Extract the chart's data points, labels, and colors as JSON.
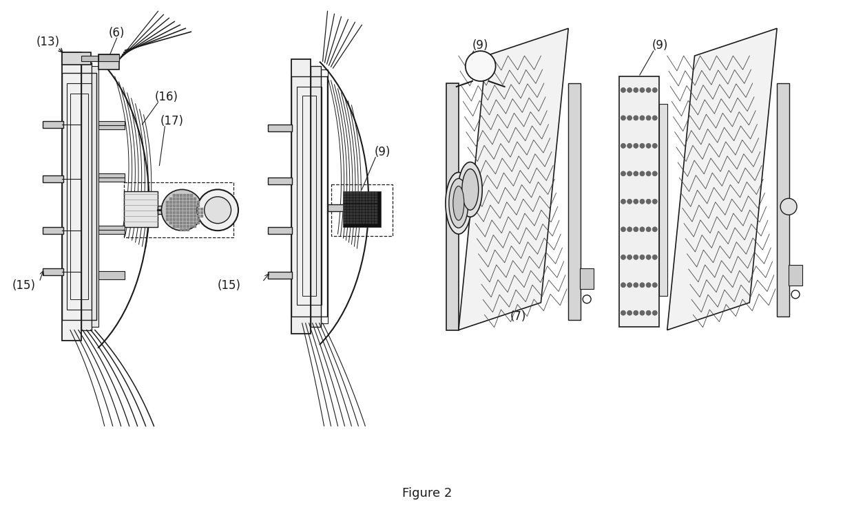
{
  "title": "Figure 2",
  "title_fontsize": 13,
  "bg_color": "#ffffff",
  "line_color": "#1a1a1a",
  "gray1": "#c8c8c8",
  "gray2": "#e0e0e0",
  "gray3": "#a0a0a0",
  "dark": "#1a1a1a"
}
